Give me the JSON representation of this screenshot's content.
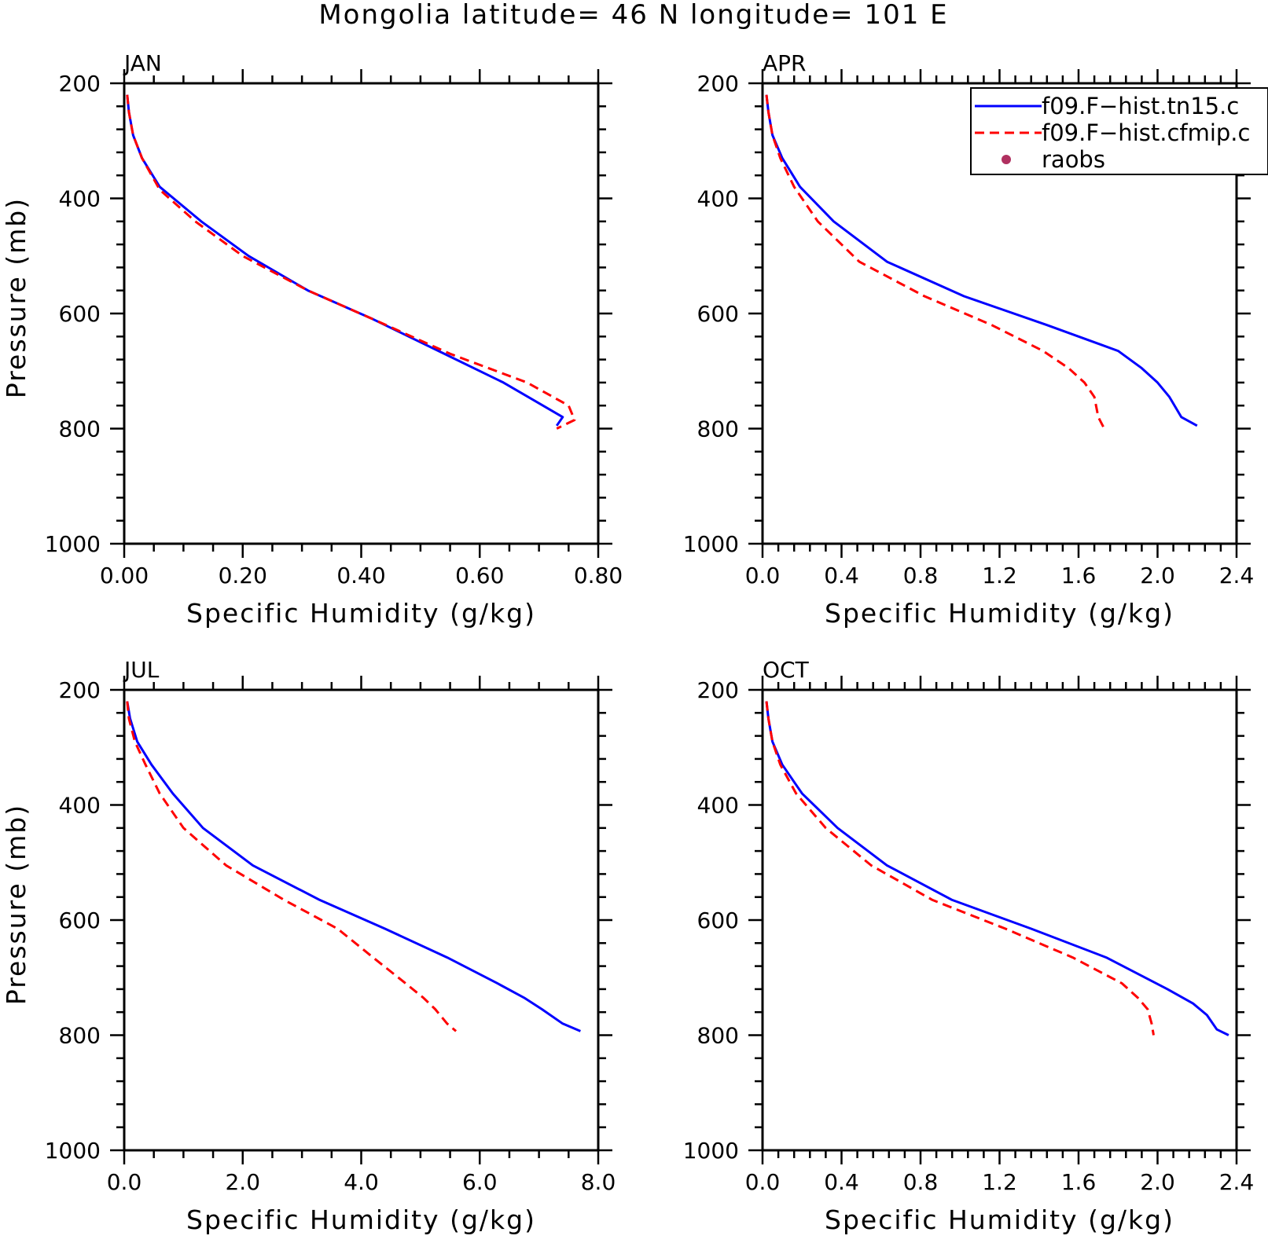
{
  "chart_data": {
    "type": "line",
    "title": "Mongolia  latitude= 46 N longitude= 101 E",
    "legend": {
      "placement": "top-right of APR panel",
      "entries": [
        {
          "label": "f09.F−hist.tn15.c",
          "style": "solid",
          "color": "#0000ff"
        },
        {
          "label": "f09.F−hist.cfmip.c",
          "style": "dashed",
          "color": "#ff0000"
        },
        {
          "label": "raobs",
          "style": "marker",
          "color": "#b03060"
        }
      ]
    },
    "panels": [
      {
        "label": "JAN",
        "xlabel": "Specific Humidity (g/kg)",
        "ylabel": "Pressure (mb)",
        "xlim": [
          0,
          0.8
        ],
        "ylim": [
          1000,
          200
        ],
        "xticks": [
          "0.00",
          "0.20",
          "0.40",
          "0.60",
          "0.80"
        ],
        "yticks": [
          "200",
          "400",
          "600",
          "800",
          "1000"
        ],
        "series": [
          {
            "color": "#0000ff",
            "dash": "solid",
            "points": [
              [
                0.005,
                220
              ],
              [
                0.008,
                250
              ],
              [
                0.015,
                290
              ],
              [
                0.03,
                330
              ],
              [
                0.06,
                380
              ],
              [
                0.13,
                440
              ],
              [
                0.21,
                500
              ],
              [
                0.31,
                560
              ],
              [
                0.42,
                610
              ],
              [
                0.52,
                660
              ],
              [
                0.64,
                720
              ],
              [
                0.74,
                780
              ],
              [
                0.73,
                795
              ]
            ]
          },
          {
            "color": "#ff0000",
            "dash": "dashed",
            "points": [
              [
                0.005,
                220
              ],
              [
                0.008,
                250
              ],
              [
                0.015,
                290
              ],
              [
                0.03,
                330
              ],
              [
                0.06,
                385
              ],
              [
                0.12,
                440
              ],
              [
                0.2,
                500
              ],
              [
                0.31,
                560
              ],
              [
                0.42,
                610
              ],
              [
                0.55,
                670
              ],
              [
                0.68,
                720
              ],
              [
                0.75,
                760
              ],
              [
                0.76,
                785
              ],
              [
                0.73,
                800
              ]
            ]
          }
        ]
      },
      {
        "label": "APR",
        "xlabel": "Specific Humidity (g/kg)",
        "ylabel": "",
        "xlim": [
          0,
          2.4
        ],
        "ylim": [
          1000,
          200
        ],
        "xticks": [
          "0.0",
          "0.4",
          "0.8",
          "1.2",
          "1.6",
          "2.0",
          "2.4"
        ],
        "yticks": [
          "200",
          "400",
          "600",
          "800",
          "1000"
        ],
        "series": [
          {
            "color": "#0000ff",
            "dash": "solid",
            "points": [
              [
                0.02,
                220
              ],
              [
                0.03,
                250
              ],
              [
                0.05,
                290
              ],
              [
                0.1,
                330
              ],
              [
                0.19,
                380
              ],
              [
                0.36,
                440
              ],
              [
                0.63,
                510
              ],
              [
                1.02,
                570
              ],
              [
                1.44,
                620
              ],
              [
                1.8,
                665
              ],
              [
                1.92,
                695
              ],
              [
                2.0,
                720
              ],
              [
                2.06,
                745
              ],
              [
                2.12,
                780
              ],
              [
                2.2,
                795
              ]
            ]
          },
          {
            "color": "#ff0000",
            "dash": "dashed",
            "points": [
              [
                0.02,
                220
              ],
              [
                0.03,
                250
              ],
              [
                0.05,
                290
              ],
              [
                0.09,
                330
              ],
              [
                0.16,
                380
              ],
              [
                0.28,
                440
              ],
              [
                0.49,
                510
              ],
              [
                0.82,
                570
              ],
              [
                1.16,
                620
              ],
              [
                1.42,
                665
              ],
              [
                1.55,
                695
              ],
              [
                1.63,
                720
              ],
              [
                1.68,
                745
              ],
              [
                1.7,
                780
              ],
              [
                1.73,
                800
              ]
            ]
          }
        ]
      },
      {
        "label": "JUL",
        "xlabel": "Specific Humidity (g/kg)",
        "ylabel": "Pressure (mb)",
        "xlim": [
          0,
          8.0
        ],
        "ylim": [
          1000,
          200
        ],
        "xticks": [
          "0.0",
          "2.0",
          "4.0",
          "6.0",
          "8.0"
        ],
        "yticks": [
          "200",
          "400",
          "600",
          "800",
          "1000"
        ],
        "series": [
          {
            "color": "#0000ff",
            "dash": "solid",
            "points": [
              [
                0.05,
                220
              ],
              [
                0.1,
                250
              ],
              [
                0.22,
                290
              ],
              [
                0.46,
                330
              ],
              [
                0.82,
                380
              ],
              [
                1.33,
                440
              ],
              [
                2.17,
                505
              ],
              [
                3.3,
                565
              ],
              [
                4.4,
                615
              ],
              [
                5.45,
                665
              ],
              [
                6.3,
                710
              ],
              [
                6.75,
                735
              ],
              [
                7.05,
                755
              ],
              [
                7.4,
                780
              ],
              [
                7.7,
                793
              ]
            ]
          },
          {
            "color": "#ff0000",
            "dash": "dashed",
            "points": [
              [
                0.05,
                220
              ],
              [
                0.08,
                250
              ],
              [
                0.18,
                290
              ],
              [
                0.36,
                330
              ],
              [
                0.6,
                380
              ],
              [
                1.0,
                440
              ],
              [
                1.72,
                505
              ],
              [
                2.7,
                565
              ],
              [
                3.6,
                615
              ],
              [
                4.2,
                665
              ],
              [
                4.75,
                710
              ],
              [
                5.05,
                735
              ],
              [
                5.25,
                755
              ],
              [
                5.45,
                780
              ],
              [
                5.6,
                793
              ]
            ]
          }
        ]
      },
      {
        "label": "OCT",
        "xlabel": "Specific Humidity (g/kg)",
        "ylabel": "",
        "xlim": [
          0,
          2.4
        ],
        "ylim": [
          1000,
          200
        ],
        "xticks": [
          "0.0",
          "0.4",
          "0.8",
          "1.2",
          "1.6",
          "2.0",
          "2.4"
        ],
        "yticks": [
          "200",
          "400",
          "600",
          "800",
          "1000"
        ],
        "series": [
          {
            "color": "#0000ff",
            "dash": "solid",
            "points": [
              [
                0.02,
                220
              ],
              [
                0.03,
                250
              ],
              [
                0.05,
                290
              ],
              [
                0.1,
                330
              ],
              [
                0.2,
                380
              ],
              [
                0.38,
                440
              ],
              [
                0.63,
                505
              ],
              [
                0.96,
                565
              ],
              [
                1.36,
                615
              ],
              [
                1.74,
                665
              ],
              [
                2.05,
                720
              ],
              [
                2.18,
                745
              ],
              [
                2.25,
                765
              ],
              [
                2.3,
                790
              ],
              [
                2.36,
                800
              ]
            ]
          },
          {
            "color": "#ff0000",
            "dash": "dashed",
            "points": [
              [
                0.02,
                220
              ],
              [
                0.03,
                250
              ],
              [
                0.05,
                290
              ],
              [
                0.09,
                330
              ],
              [
                0.17,
                380
              ],
              [
                0.32,
                440
              ],
              [
                0.55,
                505
              ],
              [
                0.86,
                565
              ],
              [
                1.23,
                615
              ],
              [
                1.57,
                665
              ],
              [
                1.82,
                710
              ],
              [
                1.9,
                735
              ],
              [
                1.95,
                755
              ],
              [
                1.97,
                780
              ],
              [
                1.98,
                800
              ]
            ]
          }
        ]
      }
    ]
  }
}
